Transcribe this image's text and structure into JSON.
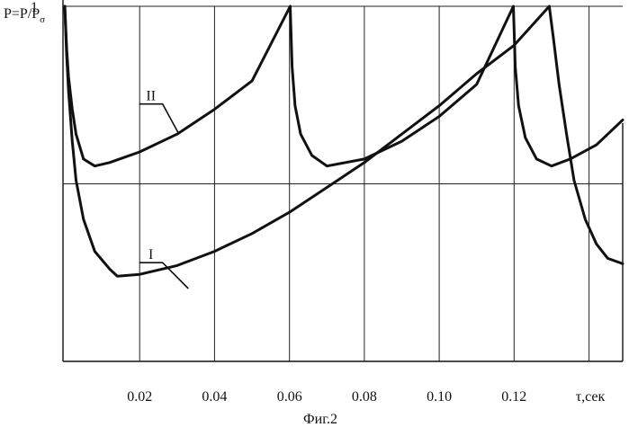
{
  "chart_data": {
    "type": "line",
    "ylabel": "P=P/P",
    "ylabel_subscript": "σ",
    "xlabel": "τ,сек",
    "caption": "Фиг.2",
    "xlim": [
      -0.00048,
      0.149
    ],
    "ylim": [
      0.0,
      1.0
    ],
    "x_ticks": [
      0.02,
      0.04,
      0.06,
      0.08,
      0.1,
      0.12
    ],
    "x_tick_labels": [
      "0.02",
      "0.04",
      "0.06",
      "0.08",
      "0.10",
      "0.12"
    ],
    "x_gridlines": [
      0.02,
      0.04,
      0.06,
      0.08,
      0.1,
      0.12,
      0.14
    ],
    "y_gridlines": [
      0.5,
      1.0
    ],
    "y_tick_labels": [
      {
        "value": 1.0,
        "label": "1"
      }
    ],
    "grid": true,
    "series": [
      {
        "name": "II",
        "points": [
          [
            0.0,
            1.0
          ],
          [
            0.0005,
            0.88
          ],
          [
            0.001,
            0.8
          ],
          [
            0.002,
            0.71
          ],
          [
            0.003,
            0.64
          ],
          [
            0.005,
            0.57
          ],
          [
            0.008,
            0.55
          ],
          [
            0.012,
            0.56
          ],
          [
            0.02,
            0.59
          ],
          [
            0.03,
            0.64
          ],
          [
            0.04,
            0.71
          ],
          [
            0.05,
            0.79
          ],
          [
            0.0602,
            1.0
          ],
          [
            0.0607,
            0.83
          ],
          [
            0.0615,
            0.72
          ],
          [
            0.063,
            0.64
          ],
          [
            0.066,
            0.58
          ],
          [
            0.07,
            0.55
          ],
          [
            0.08,
            0.57
          ],
          [
            0.09,
            0.62
          ],
          [
            0.1,
            0.69
          ],
          [
            0.11,
            0.78
          ],
          [
            0.1198,
            1.0
          ],
          [
            0.1203,
            0.83
          ],
          [
            0.1212,
            0.72
          ],
          [
            0.123,
            0.63
          ],
          [
            0.126,
            0.57
          ],
          [
            0.13,
            0.55
          ],
          [
            0.135,
            0.57
          ],
          [
            0.142,
            0.61
          ],
          [
            0.149,
            0.68
          ]
        ]
      },
      {
        "name": "I",
        "points": [
          [
            0.0,
            1.0
          ],
          [
            0.0005,
            0.86
          ],
          [
            0.001,
            0.76
          ],
          [
            0.002,
            0.62
          ],
          [
            0.003,
            0.51
          ],
          [
            0.005,
            0.4
          ],
          [
            0.008,
            0.31
          ],
          [
            0.012,
            0.26
          ],
          [
            0.014,
            0.24
          ],
          [
            0.02,
            0.245
          ],
          [
            0.03,
            0.27
          ],
          [
            0.04,
            0.31
          ],
          [
            0.05,
            0.36
          ],
          [
            0.06,
            0.42
          ],
          [
            0.07,
            0.49
          ],
          [
            0.08,
            0.56
          ],
          [
            0.09,
            0.64
          ],
          [
            0.1,
            0.72
          ],
          [
            0.11,
            0.81
          ],
          [
            0.12,
            0.89
          ],
          [
            0.1294,
            1.0
          ],
          [
            0.1305,
            0.91
          ],
          [
            0.132,
            0.78
          ],
          [
            0.134,
            0.64
          ],
          [
            0.136,
            0.51
          ],
          [
            0.139,
            0.4
          ],
          [
            0.142,
            0.33
          ],
          [
            0.145,
            0.29
          ],
          [
            0.149,
            0.275
          ]
        ]
      }
    ],
    "annotations": [
      {
        "label": "II",
        "x": 0.023,
        "y": 0.735,
        "point_x": 0.0305,
        "point_y": 0.64
      },
      {
        "label": "I",
        "x": 0.023,
        "y": 0.288,
        "point_x": 0.033,
        "point_y": 0.205
      }
    ]
  }
}
